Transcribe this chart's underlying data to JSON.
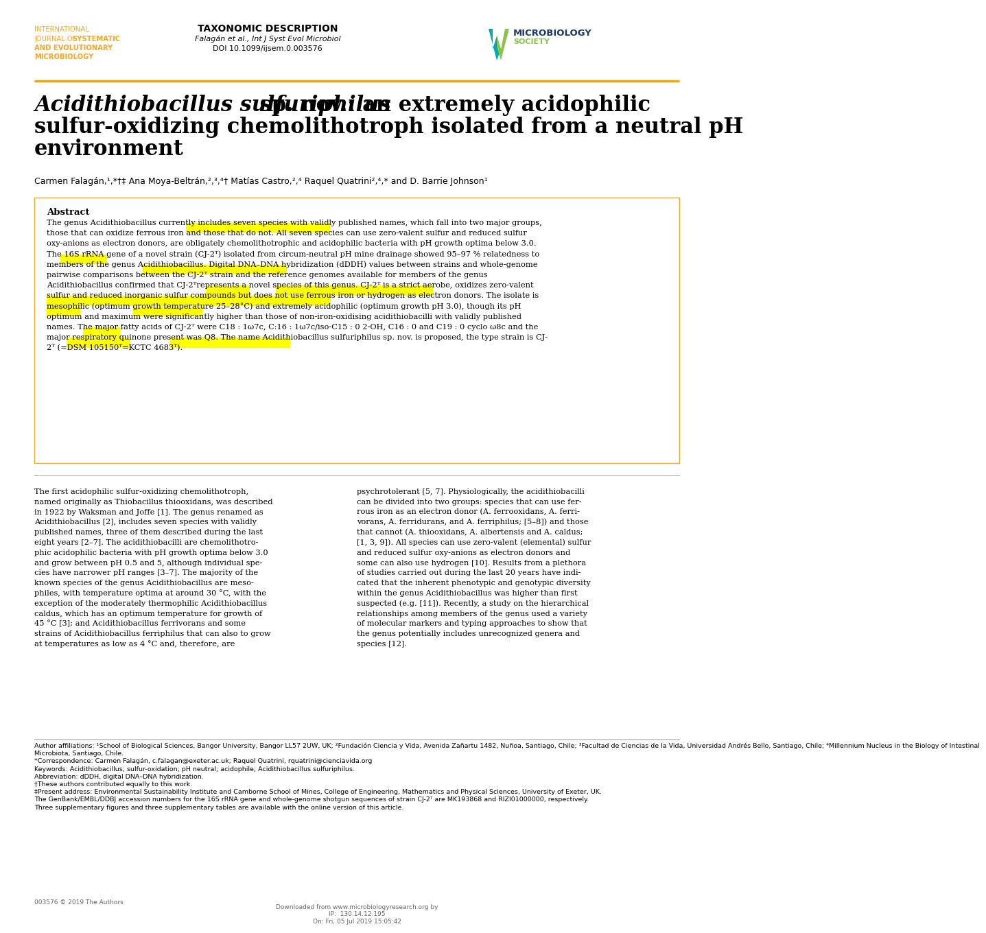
{
  "page_bg": "#ffffff",
  "orange_color": "#f5a623",
  "orange_line_color": "#f0a500",
  "journal_name_lines": [
    "INTERNATIONAL",
    "JOURNAL OF SYSTEMATIC",
    "AND EVOLUTIONARY",
    "MICROBIOLOGY"
  ],
  "journal_bold_lines": [
    false,
    true,
    true,
    true
  ],
  "taxonomic_title": "TAXONOMIC DESCRIPTION",
  "taxonomic_ref1": "Falagán et al., Int J Syst Evol Microbiol",
  "taxonomic_ref2": "DOI 10.1099/ijsem.0.003576",
  "paper_title_italic": "Acidithiobacillus sulfuriphilus",
  "paper_title_rest1": " sp. nov.: an extremely acidophilic",
  "paper_title_line2": "sulfur-oxidizing chemolithotroph isolated from a neutral pH",
  "paper_title_line3": "environment",
  "authors": "Carmen Falagán,¹,*†‡ Ana Moya-Beltrán,²,³,⁴† Matías Castro,²,⁴ Raquel Quatrini²,⁴,* and D. Barrie Johnson¹",
  "abstract_title": "Abstract",
  "yellow_highlight": "#ffff00",
  "orange_highlight": "#ffd700",
  "abs_lines": [
    "The genus Acidithiobacillus currently includes seven species with validly published names, which fall into two major groups,",
    "those that can oxidize ferrous iron and those that do not. All seven species can use zero-valent sulfur and reduced sulfur",
    "oxy-anions as electron donors, are obligately chemolithotrophic and acidophilic bacteria with pH growth optima below 3.0.",
    "The 16S rRNA gene of a novel strain (CJ-2ᵀ) isolated from circum-neutral pH mine drainage showed 95–97 % relatedness to",
    "members of the genus Acidithiobacillus. Digital DNA–DNA hybridization (dDDH) values between strains and whole-genome",
    "pairwise comparisons between the CJ-2ᵀ strain and the reference genomes available for members of the genus",
    "Acidithiobacillus confirmed that CJ-2ᵀrepresents a novel species of this genus. CJ-2ᵀ is a strict aerobe, oxidizes zero-valent",
    "sulfur and reduced inorganic sulfur compounds but does not use ferrous iron or hydrogen as electron donors. The isolate is",
    "mesophilic (optimum growth temperature 25–28°C) and extremely acidophilic (optimum growth pH 3.0), though its pH",
    "optimum and maximum were significantly higher than those of non-iron-oxidising acidithiobacilli with validly published",
    "names. The major fatty acids of CJ-2ᵀ were C18 : 1ω7c, C:16 : 1ω7c/iso-C15 : 0 2-OH, C16 : 0 and C19 : 0 cyclo ω8c and the",
    "major respiratory quinone present was Q8. The name Acidithiobacillus sulfuriphilus sp. nov. is proposed, the type strain is CJ-",
    "2ᵀ (=DSM 105150ᵀ=KCTC 4683ᵀ)."
  ],
  "col1_lines": [
    "The first acidophilic sulfur-oxidizing chemolithotroph,",
    "named originally as Thiobacillus thiooxidans, was described",
    "in 1922 by Waksman and Joffe [1]. The genus renamed as",
    "Acidithiobacillus [2], includes seven species with validly",
    "published names, three of them described during the last",
    "eight years [2–7]. The acidithiobacilli are chemolithotro-",
    "phic acidophilic bacteria with pH growth optima below 3.0",
    "and grow between pH 0.5 and 5, although individual spe-",
    "cies have narrower pH ranges [3–7]. The majority of the",
    "known species of the genus Acidithiobacillus are meso-",
    "philes, with temperature optima at around 30 °C, with the",
    "exception of the moderately thermophilic Acidithiobacillus",
    "caldus, which has an optimum temperature for growth of",
    "45 °C [3]; and Acidithiobacillus ferrivorans and some",
    "strains of Acidithiobacillus ferriphilus that can also to grow",
    "at temperatures as low as 4 °C and, therefore, are"
  ],
  "col2_lines": [
    "psychrotolerant [5, 7]. Physiologically, the acidithiobacilli",
    "can be divided into two groups: species that can use fer-",
    "rous iron as an electron donor (A. ferrooxidans, A. ferri-",
    "vorans, A. ferridurans, and A. ferriphilus; [5–8]) and those",
    "that cannot (A. thiooxidans, A. albertensis and A. caldus;",
    "[1, 3, 9]). All species can use zero-valent (elemental) sulfur",
    "and reduced sulfur oxy-anions as electron donors and",
    "some can also use hydrogen [10]. Results from a plethora",
    "of studies carried out during the last 20 years have indi-",
    "cated that the inherent phenotypic and genotypic diversity",
    "within the genus Acidithiobacillus was higher than first",
    "suspected (e.g. [11]). Recently, a study on the hierarchical",
    "relationships among members of the genus used a variety",
    "of molecular markers and typing approaches to show that",
    "the genus potentially includes unrecognized genera and",
    "species [12]."
  ],
  "footer_lines": [
    "Author affiliations: ¹School of Biological Sciences, Bangor University, Bangor LL57 2UW, UK; ²Fundación Ciencia y Vida, Avenida Zañartu 1482, Nuñoa, Santiago, Chile; ³Facultad de Ciencias de la Vida, Universidad Andrés Bello, Santiago, Chile; ⁴Millennium Nucleus in the Biology of Intestinal",
    "Microbiota, Santiago, Chile.",
    "*Correspondence: Carmen Falagán, c.falagan@exeter.ac.uk; Raquel Quatrini, rquatrini@cienciavida.org",
    "Keywords: Acidithiobacillus; sulfur-oxidation; pH neutral; acidophile; Acidithiobacillus sulfuriphilus.",
    "Abbreviation: dDDH, digital DNA–DNA hybridization.",
    "†These authors contributed equally to this work.",
    "‡Present address: Environmental Sustainability Institute and Camborne School of Mines, College of Engineering, Mathematics and Physical Sciences, University of Exeter, UK.",
    "The GenBank/EMBL/DDBJ accession numbers for the 16S rRNA gene and whole-genome shotgun sequences of strain CJ-2ᵀ are MK193868 and RIZI01000000, respectively.",
    "Three supplementary figures and three supplementary tables are available with the online version of this article."
  ],
  "bottom_left": "003576 © 2019 The Authors",
  "bottom_center": "Downloaded from www.microbiologyresearch.org by\nIP:  130.14.12.195\nOn: Fri, 05 Jul 2019 15:05:42"
}
